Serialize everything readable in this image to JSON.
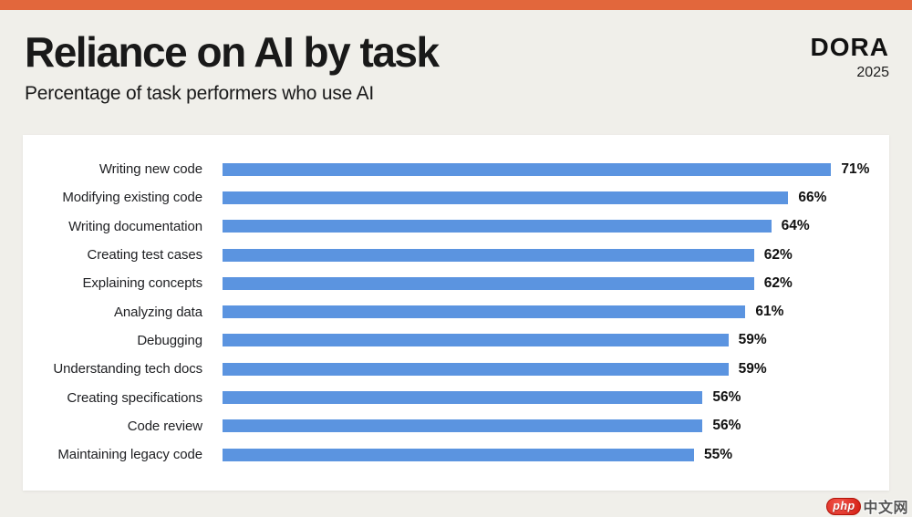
{
  "page": {
    "title": "Reliance on AI by task",
    "subtitle": "Percentage of task performers who use AI",
    "brand": "DORA",
    "year": "2025"
  },
  "chart_data": {
    "type": "bar",
    "orientation": "horizontal",
    "title": "Reliance on AI by task",
    "subtitle": "Percentage of task performers who use AI",
    "categories": [
      "Writing new code",
      "Modifying existing code",
      "Writing documentation",
      "Creating test cases",
      "Explaining concepts",
      "Analyzing data",
      "Debugging",
      "Understanding tech docs",
      "Creating specifications",
      "Code review",
      "Maintaining legacy code"
    ],
    "values": [
      71,
      66,
      64,
      62,
      62,
      61,
      59,
      59,
      56,
      56,
      55
    ],
    "value_suffix": "%",
    "xlim": [
      0,
      100
    ],
    "grid": false,
    "legend": false,
    "data_labels": "end-of-bar"
  },
  "colors": {
    "accent_top_bar": "#E2673C",
    "background": "#F0EFEA",
    "card": "#FFFFFF",
    "bar": "#5B94E0",
    "ink": "#191919"
  },
  "watermark": {
    "badge": "php",
    "text": "中文网"
  }
}
